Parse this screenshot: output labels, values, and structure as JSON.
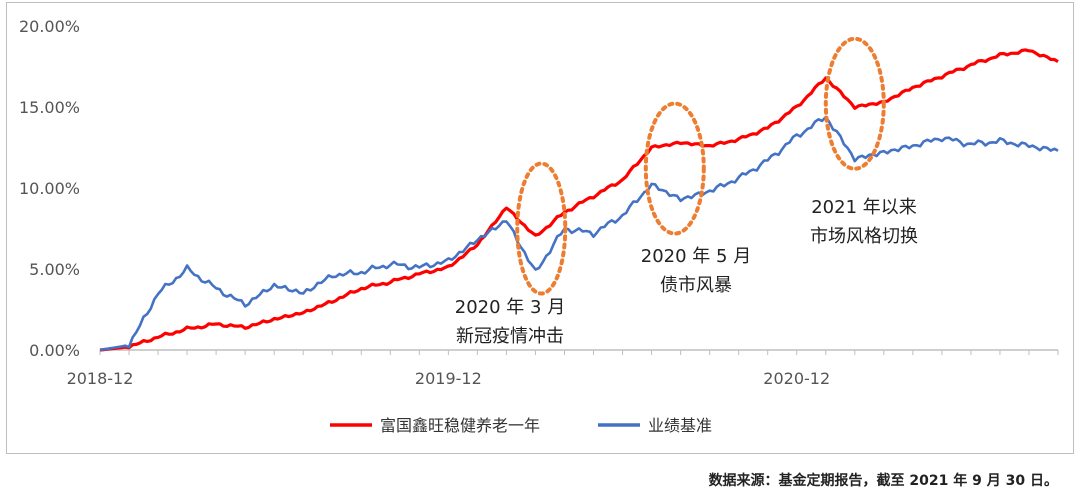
{
  "chart_data": {
    "type": "line",
    "title": "",
    "xlabel": "",
    "ylabel": "",
    "ylim": [
      0,
      20
    ],
    "y_ticks": [
      "0.00%",
      "5.00%",
      "10.00%",
      "15.00%",
      "20.00%"
    ],
    "x_tick_labels": [
      "2018-12",
      "2019-12",
      "2020-12"
    ],
    "x_range": [
      "2018-12",
      "2021-09"
    ],
    "grid": false,
    "legend_position": "bottom",
    "series": [
      {
        "name": "富国鑫旺稳健养老一年",
        "color": "#ff0000",
        "points": [
          [
            "2018-12",
            0.0
          ],
          [
            "2019-01",
            0.2
          ],
          [
            "2019-02",
            0.8
          ],
          [
            "2019-03",
            1.3
          ],
          [
            "2019-04",
            1.6
          ],
          [
            "2019-05",
            1.4
          ],
          [
            "2019-06",
            1.9
          ],
          [
            "2019-07",
            2.3
          ],
          [
            "2019-08",
            3.0
          ],
          [
            "2019-09",
            3.8
          ],
          [
            "2019-10",
            4.2
          ],
          [
            "2019-11",
            4.7
          ],
          [
            "2019-12",
            5.1
          ],
          [
            "2020-01",
            6.5
          ],
          [
            "2020-02",
            8.8
          ],
          [
            "2020-03",
            7.0
          ],
          [
            "2020-04",
            8.5
          ],
          [
            "2020-05",
            9.5
          ],
          [
            "2020-06",
            10.5
          ],
          [
            "2020-07",
            12.5
          ],
          [
            "2020-08",
            12.8
          ],
          [
            "2020-09",
            12.6
          ],
          [
            "2020-10",
            13.0
          ],
          [
            "2020-11",
            13.7
          ],
          [
            "2020-12",
            15.0
          ],
          [
            "2021-01",
            16.8
          ],
          [
            "2021-02",
            15.0
          ],
          [
            "2021-03",
            15.3
          ],
          [
            "2021-04",
            16.2
          ],
          [
            "2021-05",
            16.9
          ],
          [
            "2021-06",
            17.6
          ],
          [
            "2021-07",
            18.2
          ],
          [
            "2021-08",
            18.5
          ],
          [
            "2021-09",
            17.8
          ]
        ]
      },
      {
        "name": "业绩基准",
        "color": "#4472c4",
        "points": [
          [
            "2018-12",
            0.0
          ],
          [
            "2019-01",
            0.3
          ],
          [
            "2019-02",
            3.5
          ],
          [
            "2019-03",
            5.0
          ],
          [
            "2019-04",
            3.8
          ],
          [
            "2019-05",
            2.8
          ],
          [
            "2019-06",
            4.0
          ],
          [
            "2019-07",
            3.5
          ],
          [
            "2019-08",
            4.6
          ],
          [
            "2019-09",
            4.8
          ],
          [
            "2019-10",
            5.3
          ],
          [
            "2019-11",
            5.1
          ],
          [
            "2019-12",
            5.5
          ],
          [
            "2020-01",
            6.8
          ],
          [
            "2020-02",
            8.0
          ],
          [
            "2020-03",
            4.8
          ],
          [
            "2020-04",
            7.5
          ],
          [
            "2020-05",
            7.2
          ],
          [
            "2020-06",
            8.3
          ],
          [
            "2020-07",
            10.2
          ],
          [
            "2020-08",
            9.3
          ],
          [
            "2020-09",
            9.8
          ],
          [
            "2020-10",
            10.6
          ],
          [
            "2020-11",
            11.7
          ],
          [
            "2020-12",
            13.2
          ],
          [
            "2021-01",
            14.4
          ],
          [
            "2021-02",
            11.8
          ],
          [
            "2021-03",
            12.2
          ],
          [
            "2021-04",
            12.6
          ],
          [
            "2021-05",
            13.1
          ],
          [
            "2021-06",
            12.7
          ],
          [
            "2021-07",
            12.9
          ],
          [
            "2021-08",
            12.6
          ],
          [
            "2021-09",
            12.3
          ]
        ]
      }
    ],
    "annotations": [
      {
        "lines": [
          "2020 年 3 月",
          "新冠疫情冲击"
        ],
        "center_x": "2020-03",
        "center_y": 7.5
      },
      {
        "lines": [
          "2020 年 5 月",
          "债市风暴"
        ],
        "center_x": "2020-08",
        "center_y": 11.2
      },
      {
        "lines": [
          "2021 年以来",
          "市场风格切换"
        ],
        "center_x": "2021-02",
        "center_y": 15.2
      }
    ]
  },
  "footer": {
    "source_note": "数据来源：基金定期报告，截至 2021 年 9 月 30 日。"
  }
}
